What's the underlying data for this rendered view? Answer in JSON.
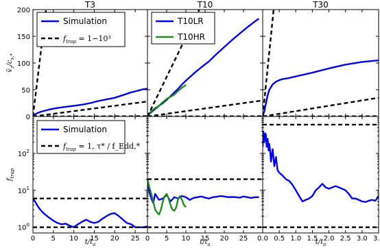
{
  "chart_data": [
    {
      "id": "t3_top",
      "title": "T3",
      "type": "line",
      "ylabel": "v̄_z / c_s,*",
      "xlabel": "",
      "xlim": [
        0,
        28
      ],
      "ylim": [
        0,
        200
      ],
      "yscale": "linear",
      "xticks": [
        0,
        5,
        10,
        15,
        20,
        25
      ],
      "yticks": [
        0,
        50,
        100,
        150,
        200
      ],
      "xtick_labels_shown": false,
      "legend": {
        "entries": [
          {
            "label": "Simulation",
            "style": "solid",
            "color": "#0000ee"
          },
          {
            "label": "f_trap = 1−10³",
            "style": "dashed",
            "color": "#000000"
          }
        ]
      },
      "series": [
        {
          "style": "solid",
          "color": "#0000ee",
          "x": [
            0,
            1,
            2,
            4,
            6,
            8,
            10,
            12,
            14,
            16,
            18,
            20,
            22,
            24,
            26,
            27,
            28
          ],
          "y": [
            2,
            6,
            9,
            13,
            16,
            18,
            20,
            22,
            25,
            29,
            32,
            35,
            40,
            45,
            49,
            51,
            52
          ]
        },
        {
          "style": "dashed",
          "color": "#000000",
          "x": [
            0,
            28
          ],
          "y": [
            0,
            28
          ]
        },
        {
          "style": "dashed",
          "color": "#000000",
          "x": [
            0,
            3.2
          ],
          "y": [
            0,
            200
          ]
        },
        {
          "style": "dashed",
          "color": "#000000",
          "x": [
            0,
            28
          ],
          "y": [
            0,
            0.5
          ]
        }
      ]
    },
    {
      "id": "t10_top",
      "title": "T10",
      "type": "line",
      "xlim": [
        0,
        30
      ],
      "ylim": [
        0,
        200
      ],
      "yscale": "linear",
      "xticks": [
        0,
        5,
        10,
        15,
        20,
        25
      ],
      "yticks": [
        0,
        50,
        100,
        150,
        200
      ],
      "xtick_labels_shown": false,
      "legend": {
        "entries": [
          {
            "label": "T10LR",
            "style": "solid",
            "color": "#0000ee"
          },
          {
            "label": "T10HR",
            "style": "solid",
            "color": "#228b22"
          }
        ]
      },
      "series": [
        {
          "style": "solid",
          "color": "#0000ee",
          "x": [
            0,
            1,
            2,
            3,
            4,
            5,
            6,
            7,
            8,
            9,
            10,
            12,
            14,
            16,
            18,
            20,
            22,
            24,
            26,
            28,
            29
          ],
          "y": [
            2,
            8,
            14,
            20,
            25,
            31,
            38,
            45,
            52,
            60,
            67,
            80,
            92,
            103,
            117,
            130,
            143,
            155,
            167,
            178,
            183
          ]
        },
        {
          "style": "solid",
          "color": "#228b22",
          "x": [
            0,
            1,
            2,
            3,
            4,
            5,
            6,
            7,
            8,
            9,
            10
          ],
          "y": [
            2,
            10,
            16,
            20,
            27,
            33,
            37,
            41,
            48,
            54,
            59
          ]
        },
        {
          "style": "dashed",
          "color": "#000000",
          "x": [
            0,
            30
          ],
          "y": [
            0,
            30
          ]
        },
        {
          "style": "dashed",
          "color": "#000000",
          "x": [
            0,
            13.5
          ],
          "y": [
            0,
            200
          ]
        },
        {
          "style": "dashed",
          "color": "#000000",
          "x": [
            0,
            30
          ],
          "y": [
            0,
            0.5
          ]
        }
      ]
    },
    {
      "id": "t30_top",
      "title": "T30",
      "type": "line",
      "xlim": [
        0,
        3.5
      ],
      "ylim": [
        0,
        200
      ],
      "yscale": "linear",
      "xticks": [
        0,
        0.5,
        1.0,
        1.5,
        2.0,
        2.5,
        3.0,
        3.5
      ],
      "yticks": [
        0,
        50,
        100,
        150,
        200
      ],
      "xtick_labels_shown": false,
      "series": [
        {
          "style": "solid",
          "color": "#0000ee",
          "x": [
            0,
            0.05,
            0.1,
            0.15,
            0.2,
            0.3,
            0.4,
            0.5,
            0.6,
            0.8,
            1.0,
            1.5,
            2.0,
            2.5,
            3.0,
            3.5
          ],
          "y": [
            0,
            10,
            25,
            40,
            50,
            60,
            65,
            68,
            70,
            72,
            75,
            82,
            90,
            97,
            102,
            105
          ]
        },
        {
          "style": "dashed",
          "color": "#000000",
          "x": [
            0,
            3.5
          ],
          "y": [
            0,
            35
          ]
        },
        {
          "style": "dashed",
          "color": "#000000",
          "x": [
            0,
            0.33
          ],
          "y": [
            0,
            200
          ]
        },
        {
          "style": "dashed",
          "color": "#000000",
          "x": [
            0,
            3.5
          ],
          "y": [
            0,
            0.5
          ]
        }
      ]
    },
    {
      "id": "t3_bottom",
      "type": "line",
      "ylabel": "f_trap",
      "xlabel": "t / t_a",
      "xlim": [
        0,
        28
      ],
      "ylim": [
        0.7,
        1000
      ],
      "yscale": "log",
      "xticks": [
        0,
        5,
        10,
        15,
        20,
        25
      ],
      "yticks": [
        1,
        10,
        100
      ],
      "legend": {
        "entries": [
          {
            "label": "Simulation",
            "style": "solid",
            "color": "#0000ee"
          },
          {
            "label": "f_trap = 1, τ* / f_Edd,*",
            "style": "dashed",
            "color": "#000000"
          }
        ]
      },
      "series": [
        {
          "style": "solid",
          "color": "#0000ee",
          "x": [
            0,
            0.5,
            1,
            1.5,
            2,
            3,
            4,
            5,
            6,
            7,
            8,
            9,
            10,
            11,
            12,
            13,
            14,
            15,
            16,
            17,
            18,
            19,
            20,
            21,
            22,
            23,
            24,
            25,
            26,
            27,
            28
          ],
          "y": [
            6,
            5,
            4,
            3.3,
            2.8,
            2.2,
            1.8,
            1.5,
            1.3,
            1.2,
            1.25,
            1.1,
            1.0,
            1.2,
            1.4,
            1.6,
            1.4,
            1.3,
            1.4,
            1.7,
            2.0,
            2.3,
            2.4,
            2.0,
            1.6,
            1.3,
            1.2,
            1.0,
            1.0,
            1.0,
            1.05
          ]
        },
        {
          "style": "dashed",
          "color": "#000000",
          "x": [
            0,
            28
          ],
          "y": [
            6,
            6
          ]
        },
        {
          "style": "dashed",
          "color": "#000000",
          "x": [
            0,
            28
          ],
          "y": [
            1,
            1
          ]
        }
      ]
    },
    {
      "id": "t10_bottom",
      "type": "line",
      "xlabel": "t / t_a",
      "xlim": [
        0,
        30
      ],
      "ylim": [
        0.7,
        1000
      ],
      "yscale": "log",
      "xticks": [
        0,
        5,
        10,
        15,
        20,
        25
      ],
      "yticks": [
        1,
        10,
        100
      ],
      "series": [
        {
          "style": "solid",
          "color": "#0000ee",
          "x": [
            0,
            0.5,
            1,
            1.5,
            2,
            3,
            4,
            5,
            6,
            7,
            8,
            9,
            10,
            11,
            12,
            13,
            14,
            15,
            16,
            17,
            18,
            19,
            20,
            21,
            22,
            23,
            24,
            25,
            26,
            27,
            28,
            29
          ],
          "y": [
            15,
            9,
            6,
            4.5,
            8,
            5.5,
            6,
            7.5,
            5,
            6.5,
            6,
            7,
            6.5,
            5.5,
            6.2,
            6.5,
            6.8,
            6.3,
            6,
            6.5,
            6.7,
            7,
            6.8,
            6.5,
            6.6,
            6.5,
            6.3,
            6.8,
            6.5,
            6.2,
            6.5,
            6.5
          ]
        },
        {
          "style": "solid",
          "color": "#228b22",
          "x": [
            0,
            0.5,
            1,
            1.5,
            2,
            2.5,
            3,
            3.5,
            4,
            4.5,
            5,
            5.5,
            6,
            6.5,
            7,
            7.5,
            8,
            8.5,
            9,
            9.5,
            10
          ],
          "y": [
            20,
            12,
            8,
            5,
            3,
            2.5,
            2.2,
            3,
            5,
            7,
            8,
            6,
            4,
            3,
            2.8,
            3.5,
            6,
            7,
            5.5,
            4,
            3.5
          ]
        },
        {
          "style": "dashed",
          "color": "#000000",
          "x": [
            0,
            30
          ],
          "y": [
            20,
            20
          ]
        },
        {
          "style": "dashed",
          "color": "#000000",
          "x": [
            0,
            30
          ],
          "y": [
            1,
            1
          ]
        }
      ]
    },
    {
      "id": "t30_bottom",
      "type": "line",
      "xlabel": "t / t_a",
      "xlim": [
        0,
        3.5
      ],
      "ylim": [
        0.7,
        1000
      ],
      "yscale": "log",
      "xticks": [
        0,
        0.5,
        1.0,
        1.5,
        2.0,
        2.5,
        3.0,
        3.5
      ],
      "yticks": [
        1,
        10,
        100
      ],
      "series": [
        {
          "style": "solid",
          "color": "#0000ee",
          "x": [
            0,
            0.02,
            0.05,
            0.08,
            0.1,
            0.12,
            0.15,
            0.18,
            0.2,
            0.22,
            0.25,
            0.3,
            0.35,
            0.4,
            0.45,
            0.5,
            0.6,
            0.7,
            0.8,
            0.9,
            1.0,
            1.1,
            1.2,
            1.3,
            1.4,
            1.5,
            1.6,
            1.7,
            1.8,
            1.9,
            2.0,
            2.1,
            2.2,
            2.3,
            2.4,
            2.5,
            2.6,
            2.7,
            2.8,
            2.9,
            3.0,
            3.1,
            3.2,
            3.3,
            3.4,
            3.5
          ],
          "y": [
            150,
            380,
            200,
            350,
            300,
            150,
            250,
            120,
            180,
            130,
            60,
            130,
            45,
            80,
            35,
            30,
            25,
            20,
            18,
            14,
            10,
            7,
            5,
            5.5,
            6,
            7,
            10,
            12,
            15,
            12,
            11,
            12,
            13,
            12,
            11,
            10,
            8,
            6,
            6,
            5.5,
            5,
            4.8,
            5.2,
            5.5,
            5.2,
            7
          ]
        },
        {
          "style": "dashed",
          "color": "#000000",
          "x": [
            0,
            3.5
          ],
          "y": [
            600,
            600
          ]
        },
        {
          "style": "dashed",
          "color": "#000000",
          "x": [
            0,
            3.5
          ],
          "y": [
            1,
            1
          ]
        }
      ]
    }
  ]
}
